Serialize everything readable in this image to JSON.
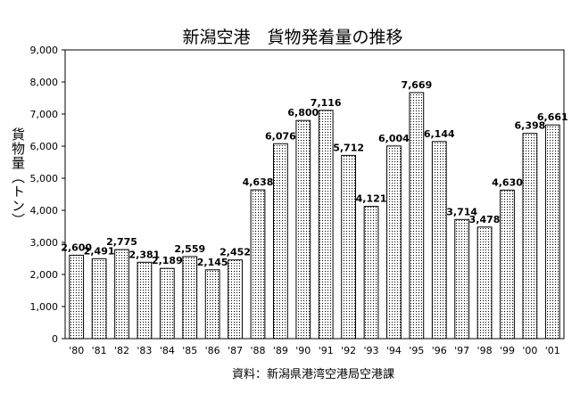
{
  "chart_data": {
    "type": "bar",
    "title": "新潟空港　貨物発着量の推移",
    "ylabel": "貨物量（トン）",
    "source": "資料：新潟県港湾空港局空港課",
    "categories": [
      "'80",
      "'81",
      "'82",
      "'83",
      "'84",
      "'85",
      "'86",
      "'87",
      "'88",
      "'89",
      "'90",
      "'91",
      "'92",
      "'93",
      "'94",
      "'95",
      "'96",
      "'97",
      "'98",
      "'99",
      "'00",
      "'01"
    ],
    "values": [
      2600,
      2491,
      2775,
      2381,
      2189,
      2559,
      2145,
      2452,
      4638,
      6076,
      6800,
      7116,
      5712,
      4121,
      6004,
      7669,
      6144,
      3714,
      3478,
      4630,
      6398,
      6661
    ],
    "value_labels": [
      "2,600",
      "2,491",
      "2,775",
      "2,381",
      "2,189",
      "2,559",
      "2,145",
      "2,452",
      "4,638",
      "6,076",
      "6,800",
      "7,116",
      "5,712",
      "4,121",
      "6,004",
      "7,669",
      "6,144",
      "3,714",
      "3,478",
      "4,630",
      "6,398",
      "6,661"
    ],
    "ylim": [
      0,
      9000
    ],
    "yticks": [
      0,
      1000,
      2000,
      3000,
      4000,
      5000,
      6000,
      7000,
      8000,
      9000
    ],
    "ytick_labels": [
      "0",
      "1,000",
      "2,000",
      "3,000",
      "4,000",
      "5,000",
      "6,000",
      "7,000",
      "8,000",
      "9,000"
    ],
    "grid": false,
    "legend": "none",
    "bar_fill": "dotted",
    "colors": {
      "bar_stroke": "#000000",
      "bar_dots": "#000000",
      "background": "#ffffff"
    }
  }
}
